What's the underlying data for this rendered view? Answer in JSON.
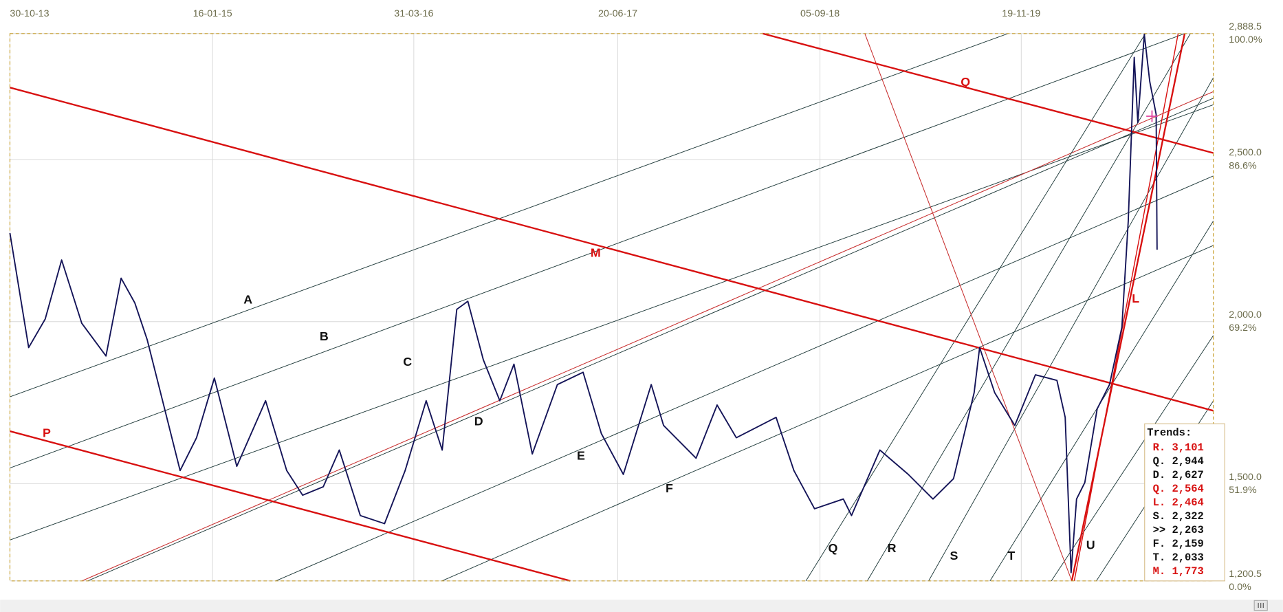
{
  "chart_data": {
    "type": "line",
    "xlim": [
      "2013-10-30",
      "2021-01-12"
    ],
    "xticks": [
      {
        "value": "2013-10-30",
        "label": "30-10-13"
      },
      {
        "value": "2015-01-16",
        "label": "16-01-15"
      },
      {
        "value": "2016-03-31",
        "label": "31-03-16"
      },
      {
        "value": "2017-06-20",
        "label": "20-06-17"
      },
      {
        "value": "2018-09-05",
        "label": "05-09-18"
      },
      {
        "value": "2019-11-19",
        "label": "19-11-19"
      }
    ],
    "ylim": [
      1200.5,
      2888.5
    ],
    "yticks": [
      {
        "value": 2888.5,
        "label": "2,888.5"
      },
      {
        "value": 2500,
        "label": "2,500.0"
      },
      {
        "value": 2000,
        "label": "2,000.0"
      },
      {
        "value": 1500,
        "label": "1,500.0"
      },
      {
        "value": 1200.5,
        "label": "1,200.5"
      }
    ],
    "y_pct_labels": [
      "100.0%",
      "86.6%",
      "69.2%",
      "51.9%",
      "0.0%"
    ],
    "grid": true,
    "annotations": [
      "A",
      "B",
      "C",
      "D",
      "E",
      "F",
      "M",
      "P",
      "Q",
      "L",
      "Q",
      "R",
      "S",
      "T",
      "U"
    ],
    "series": [
      {
        "color": "#141458",
        "x": [
          "2013-10-30",
          "2013-12-10",
          "2014-01-15",
          "2014-02-20",
          "2014-04-05",
          "2014-05-28",
          "2014-06-30",
          "2014-07-30",
          "2014-08-26",
          "2014-10-01",
          "2014-11-06",
          "2014-12-12",
          "2015-01-20",
          "2015-03-10",
          "2015-05-12",
          "2015-06-27",
          "2015-08-01",
          "2015-09-15",
          "2015-10-20",
          "2015-12-05",
          "2016-01-27",
          "2016-03-12",
          "2016-04-27",
          "2016-06-01",
          "2016-07-03",
          "2016-07-27",
          "2016-08-30",
          "2016-10-05",
          "2016-11-05",
          "2016-12-15",
          "2017-02-08",
          "2017-04-05",
          "2017-05-15",
          "2017-07-02",
          "2017-09-01",
          "2017-09-28",
          "2017-12-08",
          "2018-01-23",
          "2018-03-06",
          "2018-06-01",
          "2018-07-10",
          "2018-08-24",
          "2018-10-26",
          "2018-11-13",
          "2019-01-14",
          "2019-03-17",
          "2019-05-10",
          "2019-06-24",
          "2019-08-08",
          "2019-08-20",
          "2019-09-22",
          "2019-11-05",
          "2019-12-20",
          "2020-02-05",
          "2020-02-23",
          "2020-03-07",
          "2020-03-19",
          "2020-04-06",
          "2020-05-03",
          "2020-05-30",
          "2020-06-26",
          "2020-07-10",
          "2020-07-23",
          "2020-07-31",
          "2020-08-14",
          "2020-08-26",
          "2020-09-09",
          "2020-09-11"
        ],
        "values": [
          2273,
          1920,
          2008,
          2190,
          1995,
          1894,
          2134,
          2058,
          1945,
          1743,
          1541,
          1642,
          1826,
          1554,
          1756,
          1541,
          1465,
          1491,
          1604,
          1402,
          1377,
          1541,
          1756,
          1604,
          2038,
          2063,
          1882,
          1756,
          1869,
          1592,
          1806,
          1844,
          1655,
          1529,
          1806,
          1680,
          1579,
          1743,
          1642,
          1705,
          1541,
          1423,
          1453,
          1402,
          1604,
          1529,
          1453,
          1516,
          1781,
          1920,
          1781,
          1680,
          1836,
          1819,
          1705,
          1226,
          1453,
          1504,
          1731,
          1806,
          1983,
          2311,
          2815,
          2614,
          2886,
          2740,
          2639,
          2222
        ]
      }
    ]
  },
  "trends": {
    "title": "Trends:",
    "items": [
      {
        "text": "R. 3,101",
        "color": "#d81010"
      },
      {
        "text": "Q. 2,944",
        "color": "#111111"
      },
      {
        "text": "D. 2,627",
        "color": "#111111"
      },
      {
        "text": "Q. 2,564",
        "color": "#d81010"
      },
      {
        "text": "L. 2,464",
        "color": "#d81010"
      },
      {
        "text": "S. 2,322",
        "color": "#111111"
      },
      {
        "text": ">> 2,263",
        "color": "#111111"
      },
      {
        "text": "F. 2,159",
        "color": "#111111"
      },
      {
        "text": "T. 2,033",
        "color": "#111111"
      },
      {
        "text": "M. 1,773",
        "color": "#d81010"
      }
    ]
  }
}
